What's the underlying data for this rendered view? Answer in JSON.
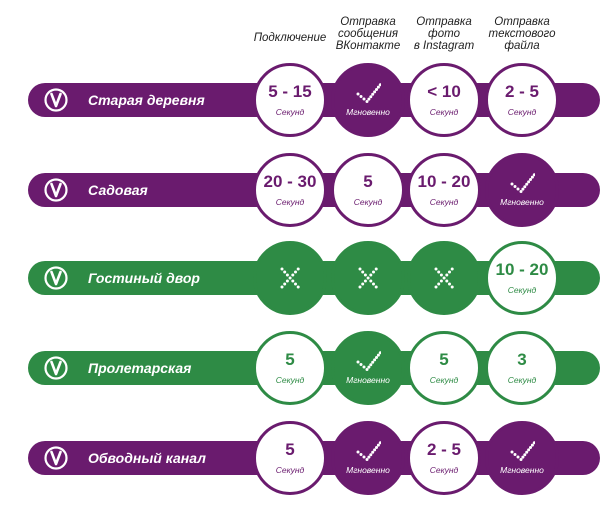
{
  "headers": [
    "Подключение",
    "Отправка сообщения ВКонтакте",
    "Отправка фото в Instagram",
    "Отправка текстового файла"
  ],
  "headers_lines": [
    [
      "Подключение"
    ],
    [
      "Отправка",
      "сообщения",
      "ВКонтакте"
    ],
    [
      "Отправка",
      "фото",
      "в Instagram"
    ],
    [
      "Отправка",
      "текстового",
      "файла"
    ]
  ],
  "colors": {
    "purple": "#6a1b6e",
    "green": "#2e8b45"
  },
  "icons": {
    "logo": "metro-logo-icon",
    "ok": "check-dotted-icon",
    "fail": "cross-dotted-icon"
  },
  "chart_data": {
    "type": "table",
    "columns": [
      "Подключение",
      "Отправка сообщения ВКонтакте",
      "Отправка фото в Instagram",
      "Отправка текстового файла"
    ],
    "rows": [
      {
        "station": "Старая деревня",
        "color": "purple",
        "cells": [
          {
            "kind": "value",
            "text": "5 - 15",
            "unit": "Секунд"
          },
          {
            "kind": "ok",
            "label": "Мгновенно"
          },
          {
            "kind": "value",
            "text": "< 10",
            "unit": "Секунд"
          },
          {
            "kind": "value",
            "text": "2 - 5",
            "unit": "Секунд"
          }
        ]
      },
      {
        "station": "Садовая",
        "color": "purple",
        "cells": [
          {
            "kind": "value",
            "text": "20 - 30",
            "unit": "Секунд"
          },
          {
            "kind": "value",
            "text": "5",
            "unit": "Секунд"
          },
          {
            "kind": "value",
            "text": "10 - 20",
            "unit": "Секунд"
          },
          {
            "kind": "ok",
            "label": "Мгновенно"
          }
        ]
      },
      {
        "station": "Гостиный двор",
        "color": "green",
        "cells": [
          {
            "kind": "fail"
          },
          {
            "kind": "fail"
          },
          {
            "kind": "fail"
          },
          {
            "kind": "value",
            "text": "10 - 20",
            "unit": "Секунд"
          }
        ]
      },
      {
        "station": "Пролетарская",
        "color": "green",
        "cells": [
          {
            "kind": "value",
            "text": "5",
            "unit": "Секунд"
          },
          {
            "kind": "ok",
            "label": "Мгновенно"
          },
          {
            "kind": "value",
            "text": "5",
            "unit": "Секунд"
          },
          {
            "kind": "value",
            "text": "3",
            "unit": "Секунд"
          }
        ]
      },
      {
        "station": "Обводный канал",
        "color": "purple",
        "cells": [
          {
            "kind": "value",
            "text": "5",
            "unit": "Секунд"
          },
          {
            "kind": "ok",
            "label": "Мгновенно"
          },
          {
            "kind": "value",
            "text": "2 - 5",
            "unit": "Секунд"
          },
          {
            "kind": "ok",
            "label": "Мгновенно"
          }
        ]
      }
    ]
  }
}
